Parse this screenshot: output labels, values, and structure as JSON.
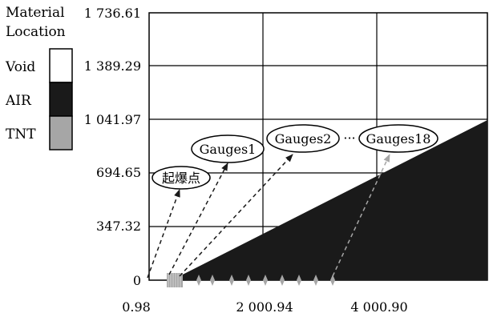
{
  "legend": {
    "title_line1": "Material",
    "title_line2": "Location",
    "items": [
      {
        "label": "Void",
        "color": "#ffffff"
      },
      {
        "label": "AIR",
        "color": "#1a1a1a"
      },
      {
        "label": "TNT",
        "color": "#a6a6a6"
      }
    ]
  },
  "y_ticks": [
    "1 736.61",
    "1 389.29",
    "1 041.97",
    "694.65",
    "347.32",
    "0"
  ],
  "x_ticks": [
    "0.98",
    "2 000.94",
    "4 000.90"
  ],
  "annotations": {
    "detonation_point": "起爆点",
    "gauge_1": "Gauges1",
    "gauge_2": "Gauges2",
    "ellipsis": "···",
    "gauge_18": "Gauges18"
  },
  "colors": {
    "air_fill": "#1a1a1a",
    "tnt_fill": "#a6a6a6",
    "grid": "#000000",
    "arrow_dark": "#1a1a1a",
    "arrow_gray": "#a6a6a6"
  }
}
